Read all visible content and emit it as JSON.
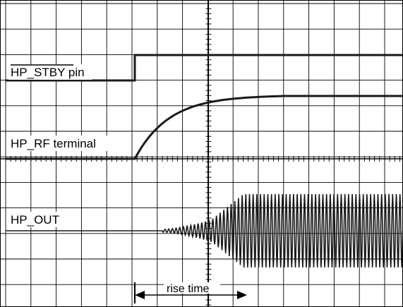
{
  "signals": [
    {
      "id": "hp_stby",
      "label": "HP_STBY pin",
      "overline": "HP_STBY"
    },
    {
      "id": "hp_rf",
      "label": "HP_RF terminal"
    },
    {
      "id": "hp_out",
      "label": "HP_OUT"
    }
  ],
  "annotation": {
    "label": "rise time"
  },
  "colors": {
    "trace": "#1a1a1a",
    "grid": "#000000",
    "background": "#ffffff"
  }
}
